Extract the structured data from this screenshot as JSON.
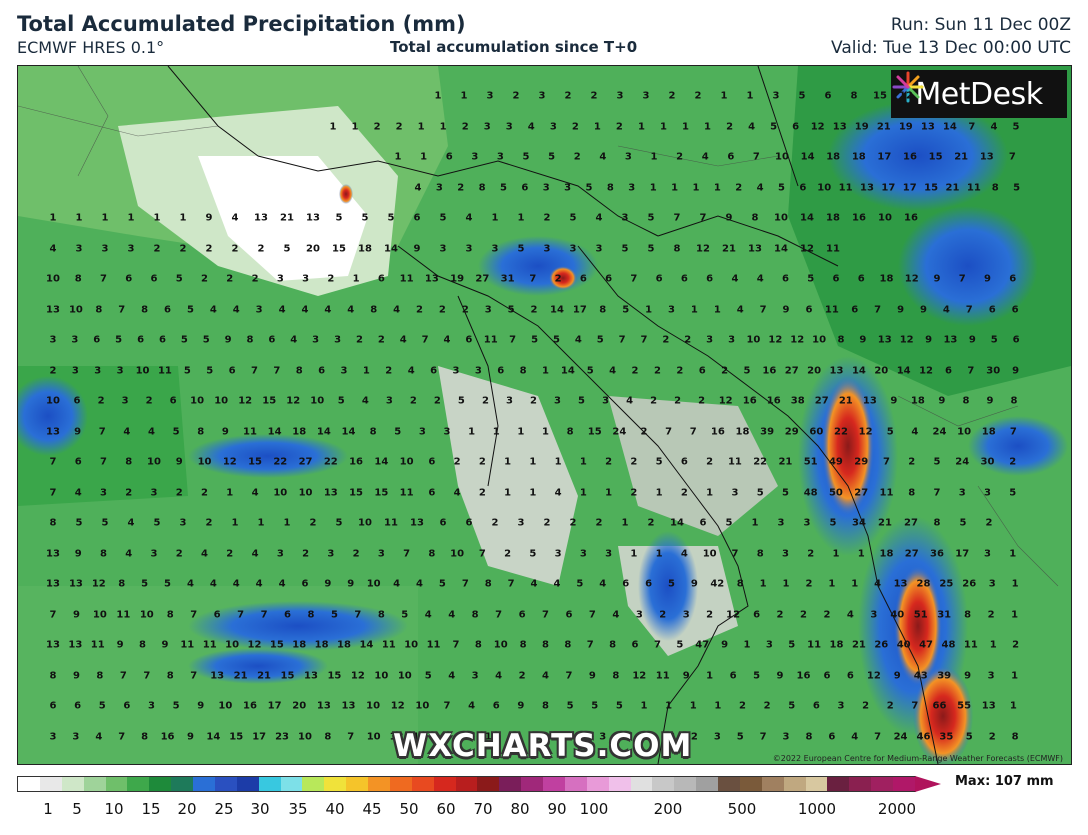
{
  "header": {
    "title": "Total Accumulated Precipitation (mm)",
    "model": "ECMWF HRES 0.1°",
    "subtitle": "Total accumulation since T+0",
    "run": "Run: Sun 11 Dec 00Z",
    "valid": "Valid: Tue 13 Dec 00:00 UTC"
  },
  "map": {
    "logo_text": "MetDesk",
    "watermark": "WXCHARTS.COM",
    "copyright": "©2022 European Centre for Medium-Range Weather Forecasts (ECMWF)",
    "sample_values": [
      {
        "row": 0,
        "text": "1 1 3 2 3 2 2 3 3 2 2 1 1 3 5 6 8 15 12"
      },
      {
        "row": 1,
        "text": "1 1 2 2 1 1 2 3 3 4 3 2 1 2 1 1 1 1 2 4 5 6 12 13 19 21 19 13 14 7 4 5"
      },
      {
        "row": 2,
        "text": "1 1 6 3 3 5 5 2 4 3 1 2 4 6 7 10 14 18 18 17 16 15 21 13 7"
      },
      {
        "row": 3,
        "text": "4 3 2 8 5 6 3 3 5 8 3 1 1 1 1 2 4 5 6 10 11 13 17 17 15 21 11 8 5"
      },
      {
        "row": 4,
        "text": "1 1 1 1 1 1 9 4 13 21 13 5 5 5 6 5 4 1 1 2 5 4 3 5 7 7 9 8 10 14 18 16 10 16"
      },
      {
        "row": 5,
        "text": "4 3 3 3 2 2 2 2 2 5 20 15 18 14 9 3 3 3 5 3 3 3 5 5 8 12 21 13 14 12 11"
      },
      {
        "row": 6,
        "text": "10 8 7 6 6 5 2 2 2 3 3 2 1 6 11 13 19 27 31 7 2 6 6 7 6 6 6 4 4 6 5 6 6 18 12 9 7 9 6"
      },
      {
        "row": 7,
        "text": "13 10 8 7 8 6 5 4 4 3 4 4 4 4 8 4 2 2 2 3 5 2 14 17 8 5 1 3 1 1 4 7 9 6 11 6 7 9 9 4 7 6 6"
      },
      {
        "row": 8,
        "text": "3 3 6 5 6 6 5 5 9 8 6 4 3 3 2 2 4 7 4 6 11 7 5 5 4 5 7 7 2 2 3 3 10 12 12 10 8 9 13 12 9 13 9 5 6"
      },
      {
        "row": 9,
        "text": "2 3 3 3 10 11 5 5 6 7 7 8 6 3 1 2 4 6 3 3 6 8 1 14 5 4 2 2 2 6 2 5 16 27 20 13 14 20 14 12 6 7 30 9"
      },
      {
        "row": 10,
        "text": "10 6 2 3 2 6 10 10 12 15 12 10 5 4 3 2 2 5 2 3 2 3 5 3 4 2 2 2 12 16 16 38 27 21 13 9 18 9 8 9 8"
      },
      {
        "row": 11,
        "text": "13 9 7 4 4 5 8 9 11 14 18 14 14 8 5 3 3 1 1 1 1 8 15 24 2 7 7 16 18 39 29 60 22 12 5 4 24 10 18 7"
      },
      {
        "row": 12,
        "text": "7 6 7 8 10 9 10 12 15 22 27 22 16 14 10 6 2 2 1 1 1 1 2 2 5 6 2 11 22 21 51 49 29 7 2 5 24 30 2"
      },
      {
        "row": 13,
        "text": "7 4 3 2 3 2 2 1 4 10 10 13 15 15 11 6 4 2 1 1 4 1 1 2 1 2 1 3 5 5 48 50 27 11 8 7 3 3 5"
      },
      {
        "row": 14,
        "text": "8 5 5 4 5 3 2 1 1 1 2 5 10 11 13 6 6 2 3 2 2 2 1 2 14 6 5 1 3 3 5 34 21 27 8 5 2"
      },
      {
        "row": 15,
        "text": "13 9 8 4 3 2 4 2 4 3 2 3 2 3 7 8 10 7 2 5 3 3 3 1 1 4 10 7 8 3 2 1 1 18 27 36 17 3 1"
      },
      {
        "row": 16,
        "text": "13 13 12 8 5 5 4 4 4 4 4 6 9 9 10 4 4 5 7 8 7 4 4 5 4 6 6 5 9 42 8 1 1 2 1 1 4 13 28 25 26 3 1"
      },
      {
        "row": 17,
        "text": "7 9 10 11 10 8 7 6 7 7 6 8 5 7 8 5 4 4 8 7 6 7 6 7 4 3 2 3 2 12 6 2 2 2 4 3 40 51 31 8 2 1"
      },
      {
        "row": 18,
        "text": "13 13 11 9 8 9 11 11 10 12 15 18 18 18 14 11 10 11 7 8 10 8 8 8 7 8 6 7 5 47 9 1 3 5 11 18 21 26 40 47 48 11 1 2"
      },
      {
        "row": 19,
        "text": "8 9 8 7 7 8 7 13 21 21 15 13 15 12 10 10 5 4 3 4 2 4 7 9 8 12 11 9 1 6 5 9 16 6 6 12 9 43 39 9 3 1"
      },
      {
        "row": 20,
        "text": "6 6 5 6 3 5 9 10 16 17 20 13 13 10 12 10 7 4 6 9 8 5 5 5 1 1 1 1 2 2 5 6 3 2 2 7 66 55 13 1"
      },
      {
        "row": 21,
        "text": "3 3 4 7 8 16 9 14 15 17 23 10 8 7 10 12 11 4 1 1 1 1 1 3 3 2 1 8 2 3 5 7 3 8 6 4 7 24 46 35 5 2 8"
      }
    ]
  },
  "legend": {
    "ticks": [
      "1",
      "5",
      "10",
      "15",
      "20",
      "25",
      "30",
      "35",
      "40",
      "45",
      "50",
      "60",
      "70",
      "80",
      "90",
      "100",
      "200",
      "500",
      "1000",
      "2000"
    ],
    "max_label": "Max: 107 mm",
    "colors": {
      "white": "#ffffff",
      "light_green": "#9fd39a",
      "green": "#3ea84b",
      "dark_green": "#1e8a3a",
      "blue": "#2a6fd6",
      "cyan": "#38c8e0",
      "yellow": "#f0e23a",
      "orange": "#f39325",
      "red": "#d6281e",
      "dark_red": "#8b1a1a",
      "magenta": "#c040a0",
      "pink": "#e89ad8",
      "grey": "#b8b8b8",
      "brown": "#7a5a3a",
      "beige": "#d8c8a0",
      "purple": "#7a1e5a"
    }
  }
}
